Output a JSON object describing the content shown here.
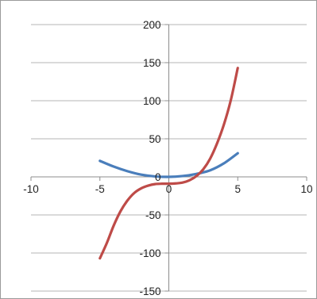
{
  "chart_data": {
    "type": "scatter",
    "title": "",
    "xlabel": "",
    "ylabel": "",
    "xlim": [
      -10,
      10
    ],
    "ylim": [
      -150,
      200
    ],
    "x_ticks": [
      -10,
      -5,
      0,
      5,
      10
    ],
    "y_ticks": [
      -150,
      -100,
      -50,
      0,
      50,
      100,
      150,
      200
    ],
    "x_tick_labels": [
      "-10",
      "-5",
      "0",
      "5",
      "10"
    ],
    "y_tick_labels": [
      "-150",
      "-100",
      "-50",
      "0",
      "50",
      "100",
      "150",
      "200"
    ],
    "grid": "horizontal",
    "smooth_lines": true,
    "series": [
      {
        "color": "#4a7ebb",
        "x": [
          -5,
          -4,
          -3,
          -2,
          -1,
          0,
          1,
          2,
          3,
          4,
          5
        ],
        "y": [
          21,
          13.5,
          7.4,
          2.9,
          0.6,
          0,
          1.1,
          3.9,
          8.6,
          17.8,
          31
        ]
      },
      {
        "color": "#be4b48",
        "x": [
          -5,
          -4.5,
          -4,
          -3.5,
          -3,
          -2.5,
          -2,
          -1.5,
          -1,
          -0.5,
          0,
          0.5,
          1,
          1.5,
          2,
          2.5,
          3,
          3.5,
          4,
          4.5,
          5
        ],
        "y": [
          -107,
          -87,
          -64,
          -45,
          -31,
          -21,
          -15,
          -11.5,
          -9.5,
          -9,
          -9,
          -8.6,
          -7.5,
          -4.5,
          1,
          10,
          24,
          44,
          69,
          101,
          143
        ]
      }
    ]
  }
}
